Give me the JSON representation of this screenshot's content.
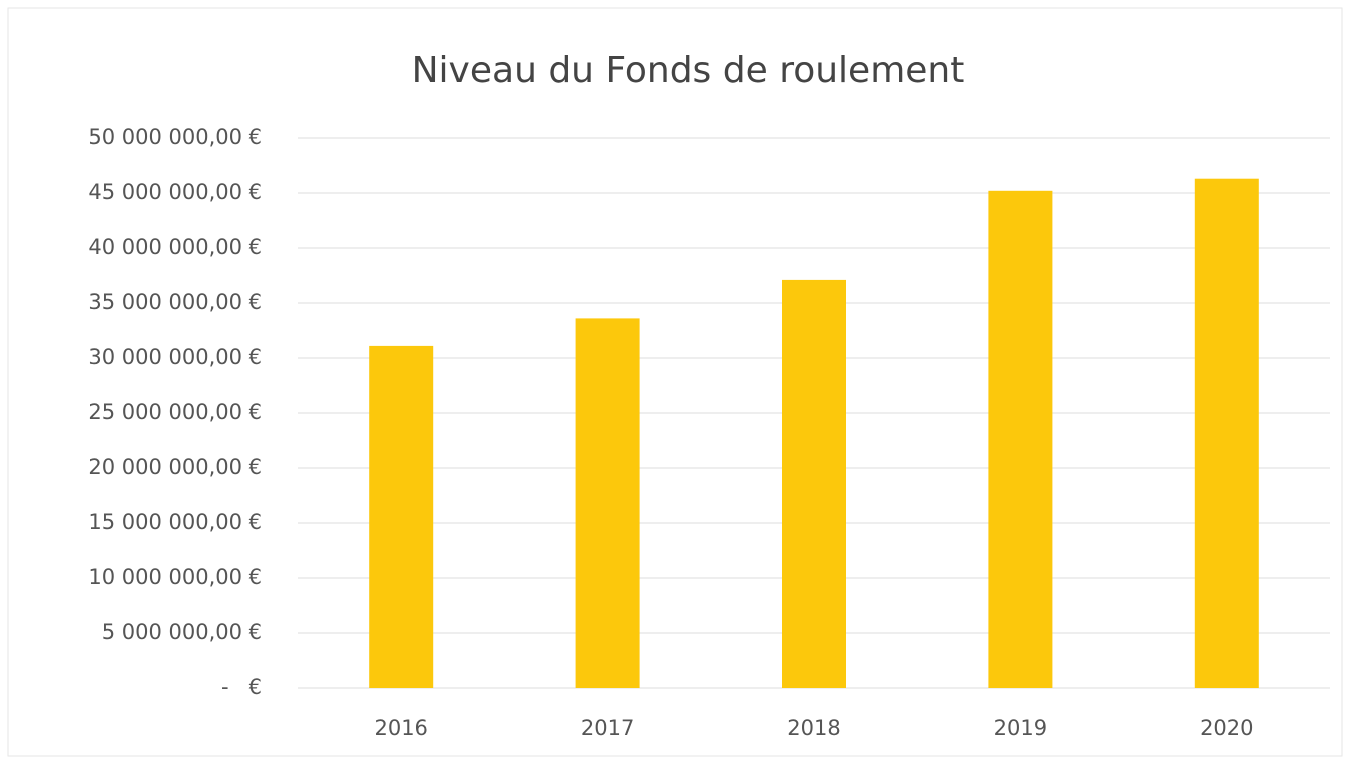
{
  "chart_data": {
    "type": "bar",
    "title": "Niveau du Fonds de roulement",
    "categories": [
      "2016",
      "2017",
      "2018",
      "2019",
      "2020"
    ],
    "values": [
      31100000,
      33600000,
      37100000,
      45200000,
      46300000
    ],
    "color": "#fcc80c",
    "ylim": [
      0,
      50000000
    ],
    "yticks": [
      {
        "value": 0,
        "label": "-   €"
      },
      {
        "value": 5000000,
        "label": "5 000 000,00 €"
      },
      {
        "value": 10000000,
        "label": "10 000 000,00 €"
      },
      {
        "value": 15000000,
        "label": "15 000 000,00 €"
      },
      {
        "value": 20000000,
        "label": "20 000 000,00 €"
      },
      {
        "value": 25000000,
        "label": "25 000 000,00 €"
      },
      {
        "value": 30000000,
        "label": "30 000 000,00 €"
      },
      {
        "value": 35000000,
        "label": "35 000 000,00 €"
      },
      {
        "value": 40000000,
        "label": "40 000 000,00 €"
      },
      {
        "value": 45000000,
        "label": "45 000 000,00 €"
      },
      {
        "value": 50000000,
        "label": "50 000 000,00 €"
      }
    ],
    "grid": true
  }
}
